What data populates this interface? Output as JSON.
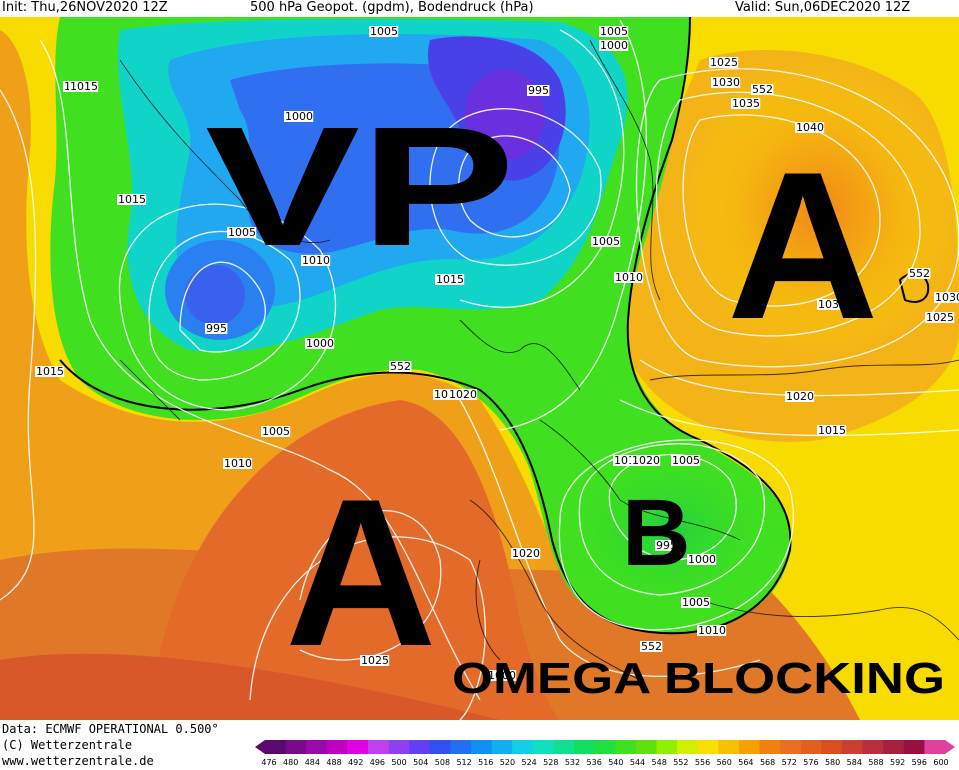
{
  "header": {
    "init": "Init: Thu,26NOV2020 12Z",
    "title": "500 hPa Geopot. (gpdm), Bodendruck (hPa)",
    "valid": "Valid: Sun,06DEC2020 12Z"
  },
  "annotations": {
    "vp": "VP",
    "high_west": "A",
    "high_east": "A",
    "low_center": "B",
    "blocking": "OMEGA BLOCKING"
  },
  "isobar_labels": [
    "1005",
    "1005",
    "1000",
    "1000",
    "995",
    "1025",
    "1030",
    "552",
    "1035",
    "1040",
    "1020",
    "1015",
    "1005",
    "1010",
    "1015",
    "995",
    "1000",
    "1005",
    "1010",
    "1015",
    "1005",
    "1010",
    "1015",
    "1020",
    "552",
    "1010",
    "1005",
    "1020",
    "995",
    "1000",
    "1005",
    "1010",
    "552",
    "1025",
    "1000",
    "1040",
    "552",
    "1030",
    "1035",
    "1025",
    "1020",
    "1015",
    "1020",
    "1015"
  ],
  "footer": {
    "data": "Data: ECMWF OPERATIONAL 0.500°",
    "copyright": "(C) Wetterzentrale",
    "url": "www.wetterzentrale.de"
  },
  "colorbar": {
    "ticks": [
      "476",
      "480",
      "484",
      "488",
      "492",
      "496",
      "500",
      "504",
      "508",
      "512",
      "516",
      "520",
      "524",
      "528",
      "532",
      "536",
      "540",
      "544",
      "548",
      "552",
      "556",
      "560",
      "564",
      "568",
      "572",
      "576",
      "580",
      "584",
      "588",
      "592",
      "596",
      "600"
    ],
    "colors": [
      "#5a0a6e",
      "#7a0a8c",
      "#9a0aaa",
      "#c000c0",
      "#e000e0",
      "#c040f0",
      "#9040f0",
      "#6040f0",
      "#3050f0",
      "#2070f0",
      "#1090f0",
      "#10b0f0",
      "#10d0e8",
      "#10e0c0",
      "#10e090",
      "#10e060",
      "#20e040",
      "#40e020",
      "#60e010",
      "#90f000",
      "#d0f000",
      "#f8e000",
      "#f8c000",
      "#f8a000",
      "#f08010",
      "#e87020",
      "#e06020",
      "#d85020",
      "#c84030",
      "#b83040",
      "#a82040",
      "#981040",
      "#e040a0"
    ]
  }
}
